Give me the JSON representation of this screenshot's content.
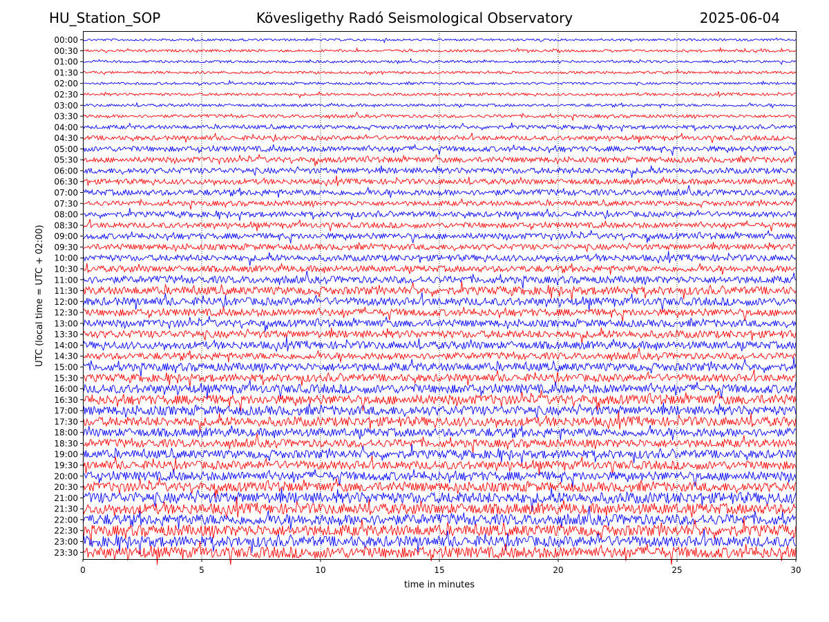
{
  "header": {
    "station": "HU_Station_SOP",
    "observatory": "Kövesligethy Radó Seismological Observatory",
    "date": "2025-06-04"
  },
  "chart_data": {
    "type": "line",
    "xlabel": "time in minutes",
    "ylabel": "UTC (local time = UTC + 02:00)",
    "xlim": [
      0,
      30
    ],
    "x_ticks": [
      0,
      5,
      10,
      15,
      20,
      25,
      30
    ],
    "vertical_gridlines": [
      5,
      10,
      15,
      20,
      25
    ],
    "colors": [
      "#0000ff",
      "#ff0000"
    ],
    "rows": [
      {
        "label": "00:00",
        "amp": 0.1
      },
      {
        "label": "00:30",
        "amp": 0.11
      },
      {
        "label": "01:00",
        "amp": 0.11
      },
      {
        "label": "01:30",
        "amp": 0.11
      },
      {
        "label": "02:00",
        "amp": 0.11
      },
      {
        "label": "02:30",
        "amp": 0.12
      },
      {
        "label": "03:00",
        "amp": 0.12
      },
      {
        "label": "03:30",
        "amp": 0.14
      },
      {
        "label": "04:00",
        "amp": 0.17
      },
      {
        "label": "04:30",
        "amp": 0.2
      },
      {
        "label": "05:00",
        "amp": 0.24
      },
      {
        "label": "05:30",
        "amp": 0.24
      },
      {
        "label": "06:00",
        "amp": 0.26
      },
      {
        "label": "06:30",
        "amp": 0.24
      },
      {
        "label": "07:00",
        "amp": 0.26
      },
      {
        "label": "07:30",
        "amp": 0.22
      },
      {
        "label": "08:00",
        "amp": 0.24
      },
      {
        "label": "08:30",
        "amp": 0.24
      },
      {
        "label": "09:00",
        "amp": 0.26
      },
      {
        "label": "09:30",
        "amp": 0.26
      },
      {
        "label": "10:00",
        "amp": 0.28
      },
      {
        "label": "10:30",
        "amp": 0.28
      },
      {
        "label": "11:00",
        "amp": 0.32
      },
      {
        "label": "11:30",
        "amp": 0.36
      },
      {
        "label": "12:00",
        "amp": 0.36
      },
      {
        "label": "12:30",
        "amp": 0.32
      },
      {
        "label": "13:00",
        "amp": 0.32
      },
      {
        "label": "13:30",
        "amp": 0.34
      },
      {
        "label": "14:00",
        "amp": 0.34
      },
      {
        "label": "14:30",
        "amp": 0.3
      },
      {
        "label": "15:00",
        "amp": 0.36
      },
      {
        "label": "15:30",
        "amp": 0.34
      },
      {
        "label": "16:00",
        "amp": 0.4
      },
      {
        "label": "16:30",
        "amp": 0.42
      },
      {
        "label": "17:00",
        "amp": 0.42
      },
      {
        "label": "17:30",
        "amp": 0.42
      },
      {
        "label": "18:00",
        "amp": 0.38
      },
      {
        "label": "18:30",
        "amp": 0.36
      },
      {
        "label": "19:00",
        "amp": 0.38
      },
      {
        "label": "19:30",
        "amp": 0.38
      },
      {
        "label": "20:00",
        "amp": 0.4
      },
      {
        "label": "20:30",
        "amp": 0.42
      },
      {
        "label": "21:00",
        "amp": 0.5
      },
      {
        "label": "21:30",
        "amp": 0.48
      },
      {
        "label": "22:00",
        "amp": 0.48
      },
      {
        "label": "22:30",
        "amp": 0.5
      },
      {
        "label": "23:00",
        "amp": 0.48
      },
      {
        "label": "23:30",
        "amp": 0.5
      }
    ]
  }
}
